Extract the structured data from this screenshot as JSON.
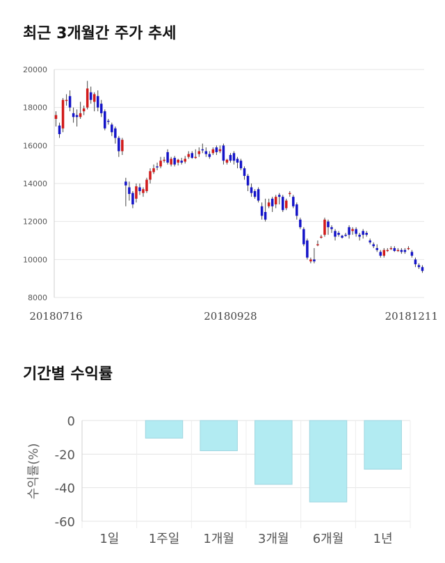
{
  "sections": {
    "price_trend_title": "최근 3개월간 주가 추세",
    "returns_title": "기간별 수익률"
  },
  "chart_data": [
    {
      "type": "candlestick",
      "title": "최근 3개월간 주가 추세",
      "ylim": [
        8000,
        20000
      ],
      "yticks": [
        8000,
        10000,
        12000,
        14000,
        16000,
        18000,
        20000
      ],
      "ytick_labels": [
        "8000",
        "10000",
        "12000",
        "14000",
        "16000",
        "18000",
        "20000"
      ],
      "xtick_labels": [
        "20180716",
        "20180928",
        "20181211"
      ],
      "xtick_index": [
        0,
        50,
        103
      ],
      "grid": true,
      "up_color": "#d11a1a",
      "down_color": "#1414c8",
      "candles": [
        [
          17400,
          17600,
          17800,
          17000
        ],
        [
          17050,
          16600,
          17200,
          16400
        ],
        [
          16900,
          18400,
          18500,
          16700
        ],
        [
          18400,
          18400,
          18700,
          18100
        ],
        [
          18600,
          18000,
          18900,
          17800
        ],
        [
          17700,
          17500,
          18000,
          17200
        ],
        [
          17600,
          17500,
          17900,
          17000
        ],
        [
          17500,
          17700,
          18300,
          17400
        ],
        [
          17800,
          17950,
          18100,
          17600
        ],
        [
          18000,
          19000,
          19400,
          17900
        ],
        [
          18800,
          18400,
          19100,
          18200
        ],
        [
          18300,
          18700,
          18800,
          17800
        ],
        [
          18600,
          18000,
          18900,
          17800
        ],
        [
          18200,
          17700,
          18400,
          17500
        ],
        [
          17800,
          16900,
          17900,
          16800
        ],
        [
          17300,
          17250,
          17400,
          17100
        ],
        [
          17100,
          16700,
          17200,
          16500
        ],
        [
          16900,
          16400,
          17000,
          16100
        ],
        [
          16400,
          15700,
          16500,
          15400
        ],
        [
          15700,
          16300,
          16400,
          15500
        ],
        [
          14100,
          13900,
          14300,
          12800
        ],
        [
          13800,
          13450,
          14100,
          13100
        ],
        [
          13500,
          12900,
          13600,
          12700
        ],
        [
          13200,
          13850,
          14000,
          13000
        ],
        [
          13800,
          13600,
          14000,
          13400
        ],
        [
          13500,
          13700,
          13800,
          13300
        ],
        [
          13600,
          14200,
          14300,
          13500
        ],
        [
          14200,
          14650,
          14800,
          14000
        ],
        [
          14600,
          14800,
          15000,
          14500
        ],
        [
          14900,
          14850,
          15100,
          14700
        ],
        [
          14900,
          15200,
          15400,
          14800
        ],
        [
          15250,
          15250,
          15400,
          15100
        ],
        [
          15650,
          15100,
          15800,
          15000
        ],
        [
          15000,
          15300,
          15400,
          14900
        ],
        [
          15350,
          15000,
          15450,
          14900
        ],
        [
          15100,
          15250,
          15300,
          14950
        ],
        [
          15200,
          15100,
          15350,
          15000
        ],
        [
          15150,
          15300,
          15450,
          15050
        ],
        [
          15400,
          15550,
          15700,
          15300
        ],
        [
          15600,
          15350,
          15700,
          15300
        ],
        [
          15400,
          15400,
          15800,
          15300
        ],
        [
          15550,
          15700,
          15900,
          15400
        ],
        [
          15800,
          15750,
          16100,
          15600
        ],
        [
          15700,
          15550,
          15900,
          15400
        ],
        [
          15550,
          15400,
          15700,
          15300
        ],
        [
          15600,
          15800,
          15900,
          15500
        ],
        [
          15900,
          15650,
          16000,
          15500
        ],
        [
          15700,
          15800,
          16000,
          15600
        ],
        [
          16000,
          15200,
          16100,
          15000
        ],
        [
          15100,
          15250,
          15300,
          15000
        ],
        [
          15500,
          15200,
          15600,
          15100
        ],
        [
          15600,
          15200,
          15700,
          15000
        ],
        [
          15300,
          15100,
          15400,
          14800
        ],
        [
          15200,
          14800,
          15300,
          14700
        ],
        [
          14800,
          14400,
          14900,
          14200
        ],
        [
          14400,
          13900,
          14500,
          13600
        ],
        [
          13800,
          13500,
          14000,
          13300
        ],
        [
          13600,
          13300,
          13700,
          13200
        ],
        [
          13700,
          13100,
          13800,
          13000
        ],
        [
          12800,
          12300,
          13000,
          12100
        ],
        [
          12500,
          12100,
          13200,
          12000
        ],
        [
          12800,
          13000,
          13200,
          12700
        ],
        [
          13200,
          12800,
          13300,
          12500
        ],
        [
          12900,
          13300,
          13400,
          12700
        ],
        [
          13400,
          13300,
          13500,
          12900
        ],
        [
          13300,
          12600,
          13400,
          12500
        ],
        [
          12700,
          13100,
          13200,
          12600
        ],
        [
          13500,
          13500,
          13600,
          13300
        ],
        [
          13300,
          12800,
          13400,
          12700
        ],
        [
          12900,
          12300,
          13000,
          12100
        ],
        [
          12100,
          11700,
          12200,
          11600
        ],
        [
          11600,
          10800,
          11700,
          10700
        ],
        [
          11000,
          10100,
          11100,
          10000
        ],
        [
          9900,
          10000,
          10100,
          9800
        ],
        [
          10000,
          9900,
          10600,
          9800
        ],
        [
          10800,
          10800,
          11000,
          10700
        ],
        [
          11200,
          11200,
          11300,
          11100
        ],
        [
          11300,
          12100,
          12200,
          11200
        ],
        [
          12000,
          11700,
          12100,
          11300
        ],
        [
          11700,
          11600,
          11800,
          11400
        ],
        [
          11500,
          11200,
          11600,
          11000
        ],
        [
          11400,
          11300,
          11500,
          11200
        ],
        [
          11250,
          11150,
          11300,
          11100
        ],
        [
          11300,
          11250,
          11400,
          11200
        ],
        [
          11700,
          11300,
          11800,
          11100
        ],
        [
          11500,
          11600,
          11700,
          11300
        ],
        [
          11600,
          11350,
          11700,
          11200
        ],
        [
          11300,
          11200,
          11400,
          11000
        ],
        [
          11500,
          11300,
          11600,
          11100
        ],
        [
          11400,
          11300,
          11500,
          11200
        ],
        [
          11000,
          10900,
          11100,
          10800
        ],
        [
          10800,
          10700,
          10900,
          10600
        ],
        [
          10600,
          10500,
          10800,
          10400
        ],
        [
          10400,
          10200,
          10500,
          10100
        ],
        [
          10200,
          10500,
          10600,
          10100
        ],
        [
          10500,
          10500,
          10600,
          10400
        ],
        [
          10600,
          10600,
          10700,
          10500
        ],
        [
          10600,
          10450,
          10700,
          10400
        ],
        [
          10500,
          10500,
          10600,
          10400
        ],
        [
          10500,
          10400,
          10600,
          10300
        ],
        [
          10500,
          10400,
          10600,
          10300
        ],
        [
          10600,
          10600,
          10700,
          10500
        ],
        [
          10400,
          10200,
          10500,
          10100
        ],
        [
          10000,
          9750,
          10100,
          9600
        ],
        [
          9700,
          9600,
          9800,
          9500
        ],
        [
          9600,
          9400,
          9700,
          9300
        ]
      ]
    },
    {
      "type": "bar",
      "title": "기간별 수익률",
      "ylabel": "수익률(%)",
      "categories": [
        "1일",
        "1주일",
        "1개월",
        "3개월",
        "6개월",
        "1년"
      ],
      "values": [
        0,
        -10.5,
        -18,
        -38,
        -48.5,
        -29
      ],
      "ylim": [
        -60,
        0
      ],
      "yticks": [
        0,
        -20,
        -40,
        -60
      ],
      "ytick_labels": [
        "0",
        "-20",
        "-40",
        "-60"
      ],
      "grid": true,
      "bar_color": "#b2ebf2",
      "bar_edge_color": "#9fd6e0"
    }
  ]
}
